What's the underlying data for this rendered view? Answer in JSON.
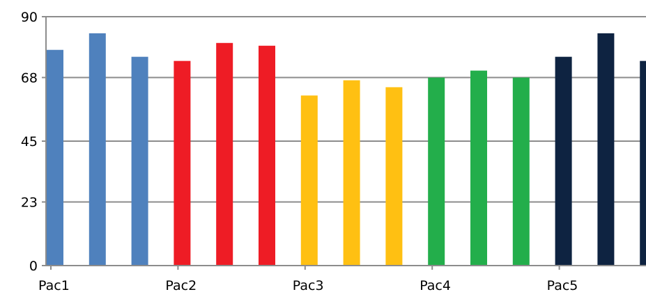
{
  "chart_data": {
    "type": "bar",
    "title": "",
    "xlabel": "",
    "ylabel": "",
    "ylim": [
      0,
      90
    ],
    "yticks": [
      "0",
      "23",
      "45",
      "68",
      "90"
    ],
    "ytick_values": [
      0,
      23,
      45,
      68,
      90
    ],
    "grid": true,
    "legend": "none",
    "groups": [
      {
        "label": "Pac1",
        "color": "#4f81bd",
        "values": [
          78,
          84,
          75.5
        ]
      },
      {
        "label": "Pac2",
        "color": "#ee1c25",
        "values": [
          74,
          80.5,
          79.5
        ]
      },
      {
        "label": "Pac3",
        "color": "#ffc012",
        "values": [
          61.5,
          67,
          64.5
        ]
      },
      {
        "label": "Pac4",
        "color": "#23ae4b",
        "values": [
          68,
          70.5,
          68
        ]
      },
      {
        "label": "Pac5",
        "color": "#0e2341",
        "values": [
          75.5,
          84,
          74
        ]
      }
    ]
  }
}
